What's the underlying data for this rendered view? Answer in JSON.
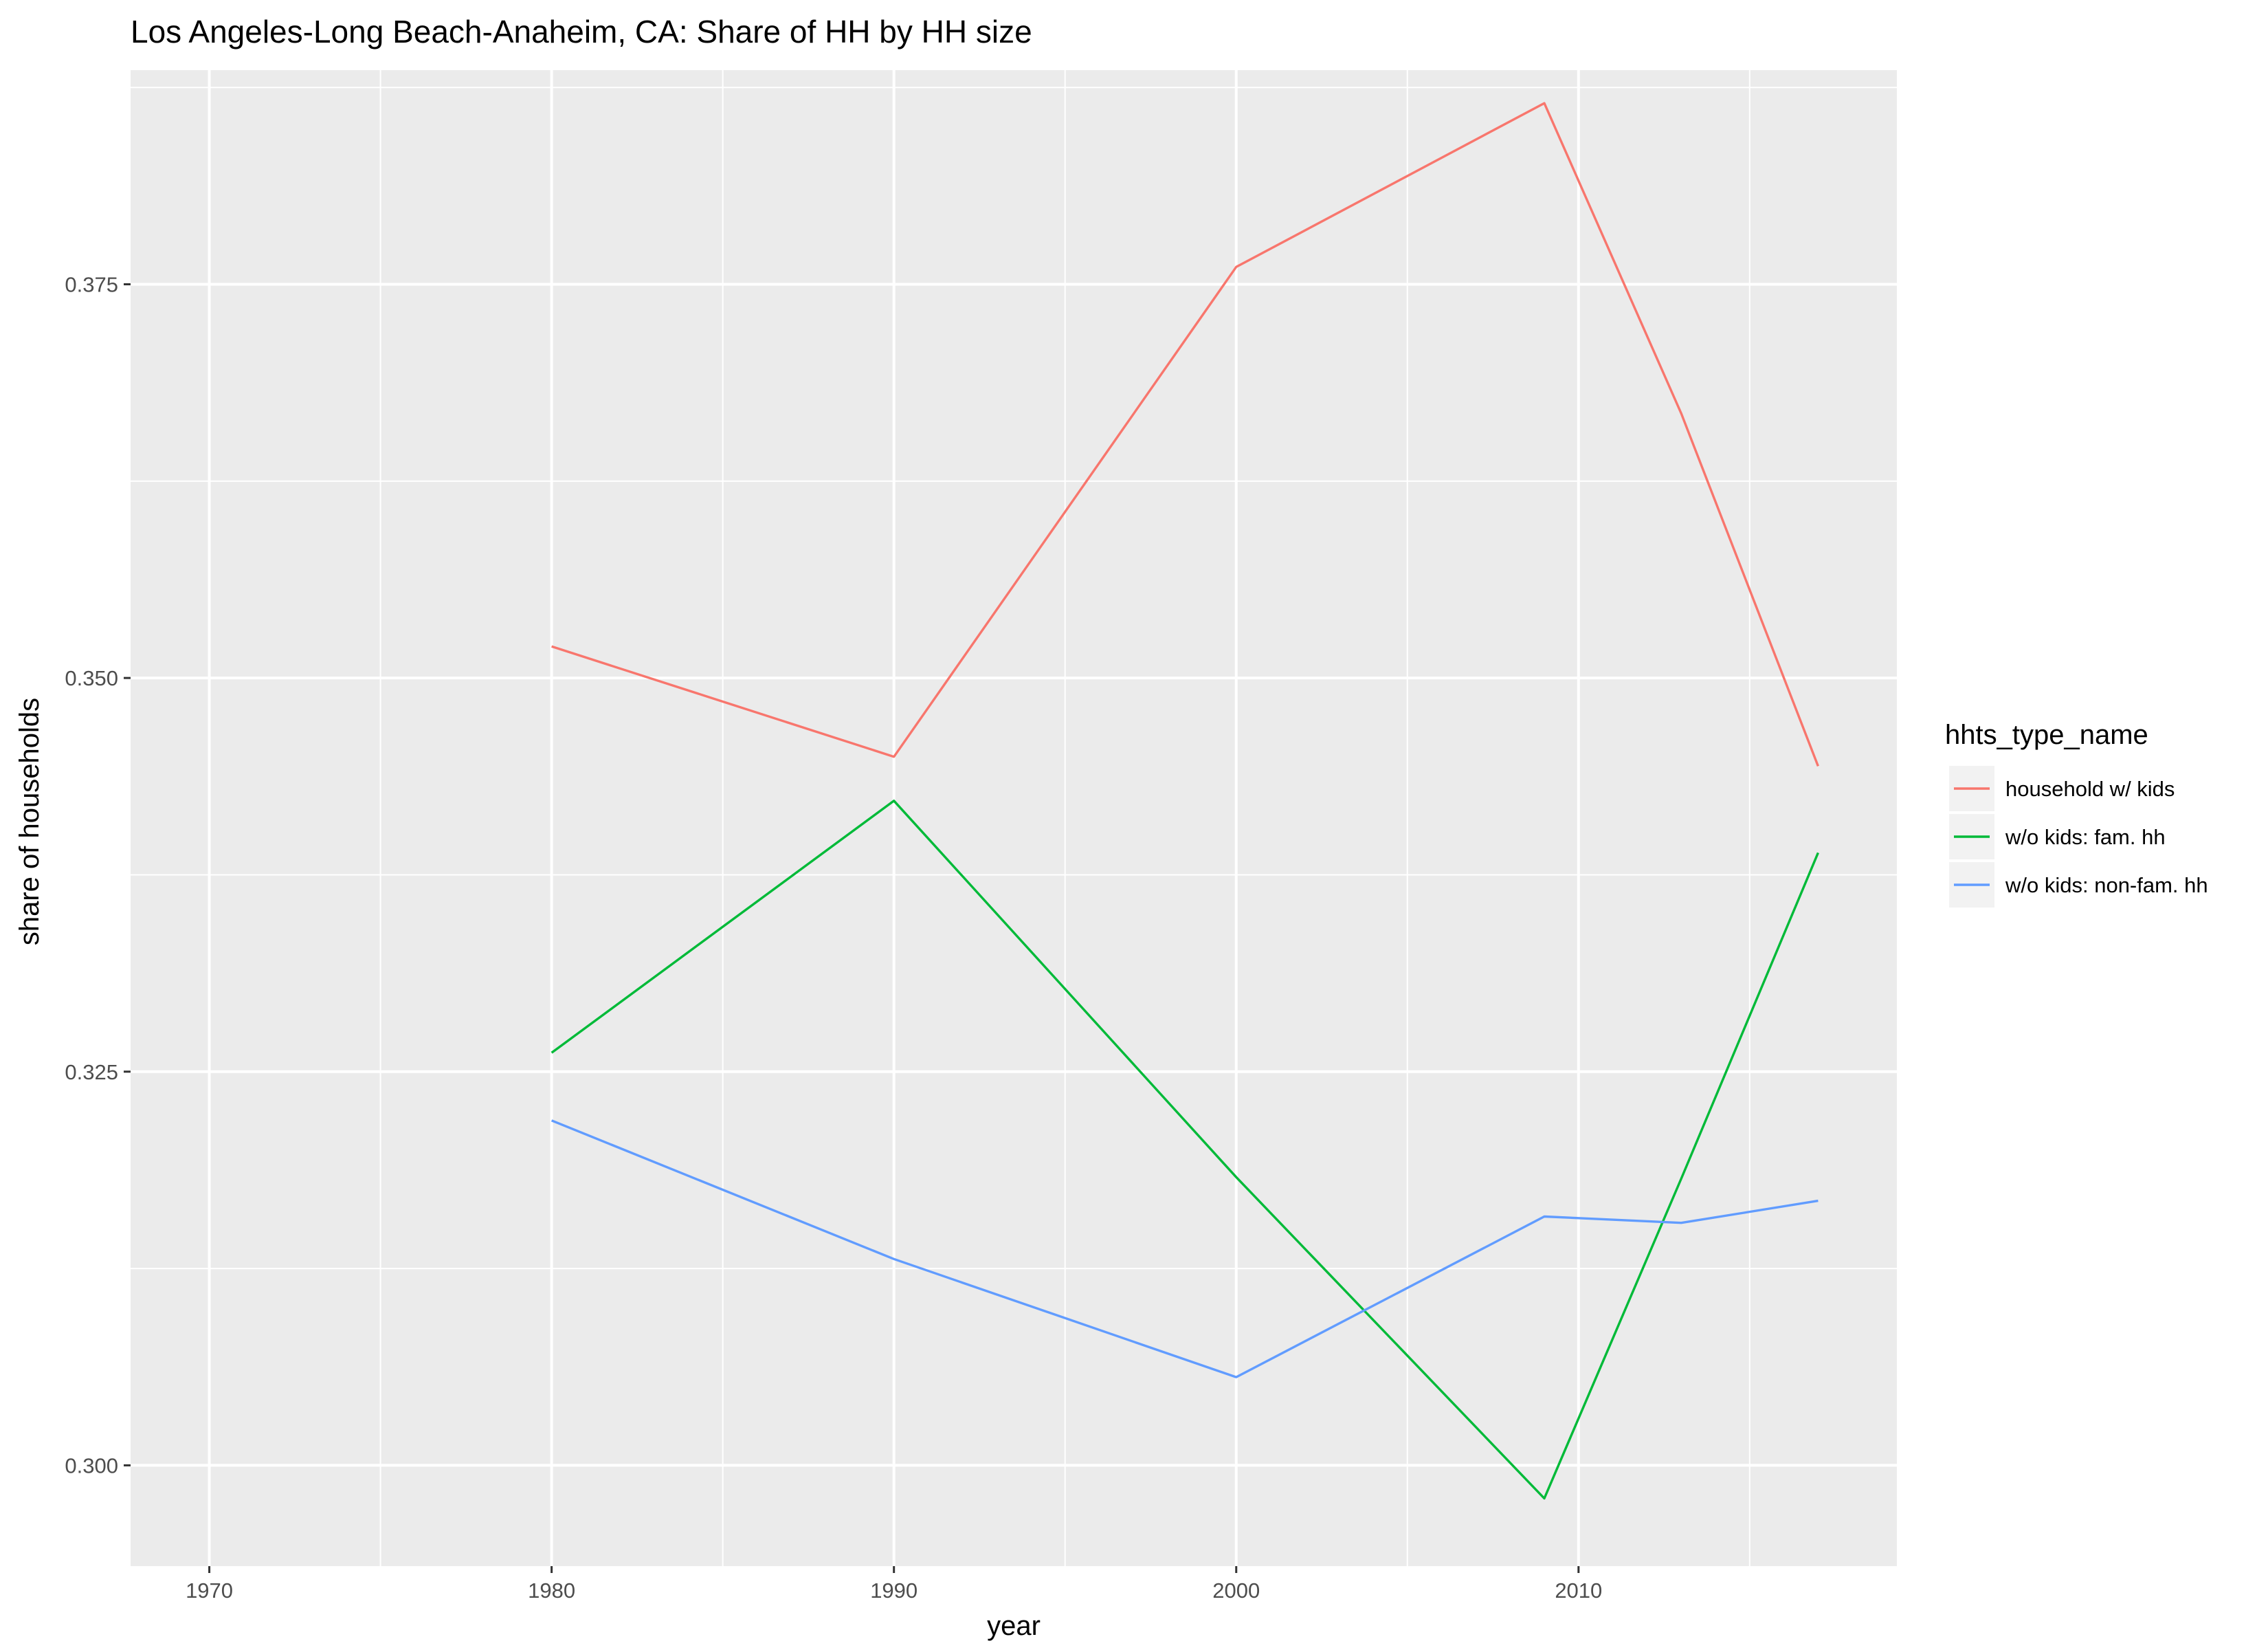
{
  "chart_data": {
    "type": "line",
    "title": "Los Angeles-Long Beach-Anaheim, CA: Share of HH by HH size",
    "xlabel": "year",
    "ylabel": "share of households",
    "xlim": [
      1967.7,
      2019.3
    ],
    "ylim": [
      0.2936,
      0.3886
    ],
    "x_ticks": [
      1970,
      1980,
      1990,
      2000,
      2010
    ],
    "x_tick_labels": [
      "1970",
      "1980",
      "1990",
      "2000",
      "2010"
    ],
    "y_ticks": [
      0.3,
      0.325,
      0.35,
      0.375
    ],
    "y_tick_labels": [
      "0.300",
      "0.325",
      "0.350",
      "0.375"
    ],
    "grid": true,
    "legend": {
      "title": "hhts_type_name",
      "placement": "right"
    },
    "series": [
      {
        "name": "household w/ kids",
        "color": "#F8766D",
        "x": [
          1980,
          1990,
          2000,
          2009,
          2013,
          2017
        ],
        "y": [
          0.352,
          0.345,
          0.3761,
          0.3865,
          0.3668,
          0.3444
        ]
      },
      {
        "name": "w/o kids: fam. hh",
        "color": "#00BA38",
        "x": [
          1980,
          1990,
          2000,
          2009,
          2013,
          2017
        ],
        "y": [
          0.3262,
          0.3422,
          0.3183,
          0.2979,
          0.3182,
          0.3389
        ]
      },
      {
        "name": "w/o kids: non-fam. hh",
        "color": "#619CFF",
        "x": [
          1980,
          1990,
          2000,
          2009,
          2013,
          2017
        ],
        "y": [
          0.3219,
          0.3131,
          0.3056,
          0.3158,
          0.3154,
          0.3168
        ]
      }
    ]
  }
}
